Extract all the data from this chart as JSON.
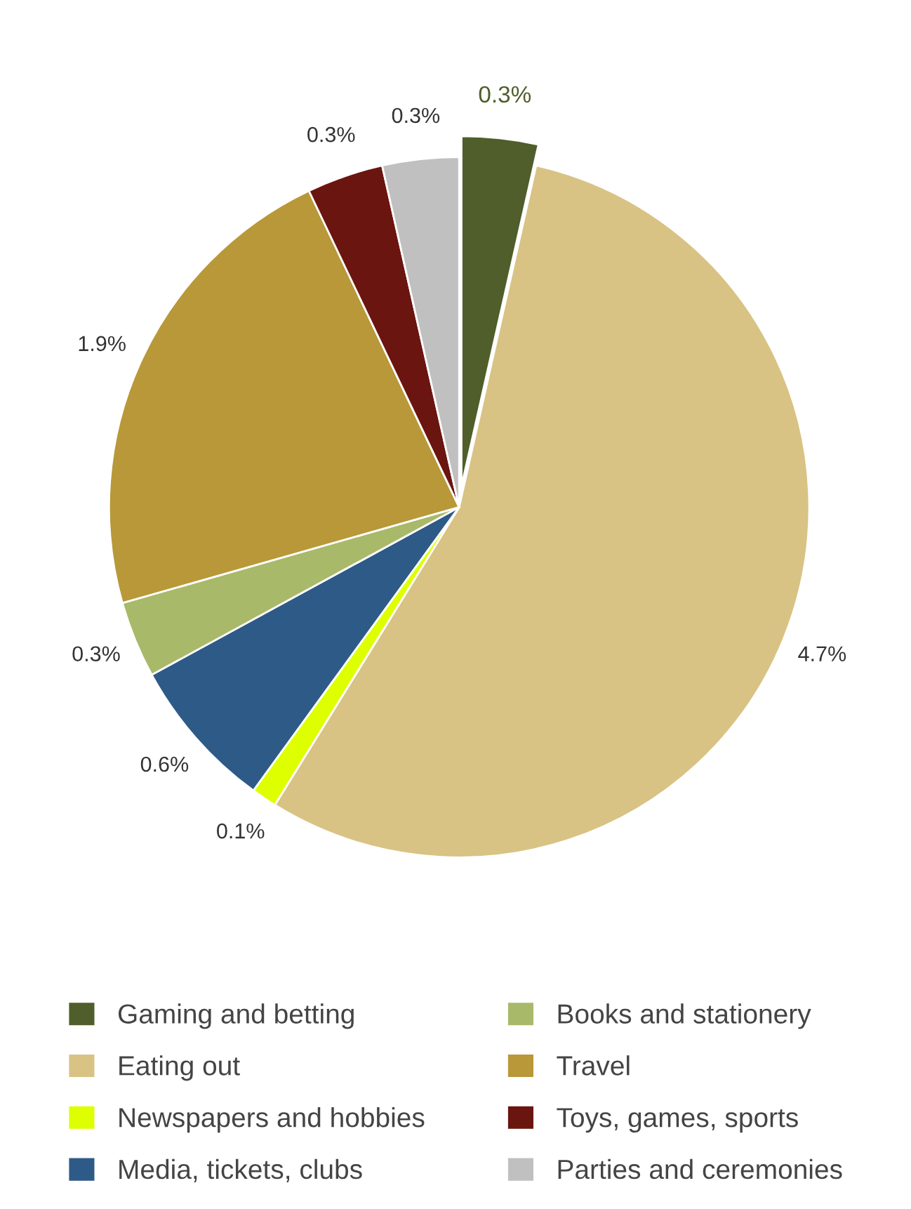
{
  "chart_data": {
    "type": "pie",
    "categories": [
      "Gaming and betting",
      "Eating out",
      "Newspapers and hobbies",
      "Media, tickets, clubs",
      "Books and stationery",
      "Travel",
      "Toys, games, sports",
      "Parties and ceremonies"
    ],
    "values": [
      0.3,
      4.7,
      0.1,
      0.6,
      0.3,
      1.9,
      0.3,
      0.3
    ],
    "value_labels": [
      "0.3%",
      "4.7%",
      "0.1%",
      "0.6%",
      "0.3%",
      "1.9%",
      "0.3%",
      "0.3%"
    ],
    "colors": [
      "#4f5e2a",
      "#d8c384",
      "#ddff00",
      "#2e5a87",
      "#a9b96a",
      "#b89838",
      "#6b1510",
      "#c0c0c0"
    ],
    "legend": "bottom"
  }
}
